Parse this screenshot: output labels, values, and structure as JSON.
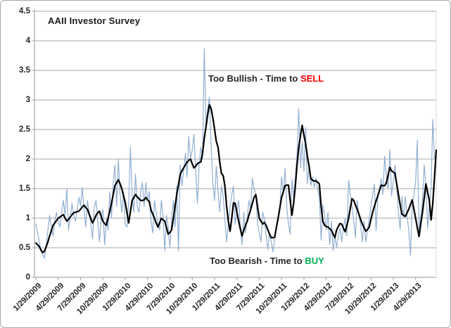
{
  "title": "AAII Investor Survey",
  "annotations": {
    "bullish_prefix": "Too Bullish - Time to ",
    "bullish_action": "SELL",
    "bearish_prefix": "Too Bearish - Time to ",
    "bearish_action": "BUY"
  },
  "colors": {
    "weekly_line": "#92AFD2",
    "smoothed_line": "#000000",
    "gridline": "#A6A6A6",
    "axis_line": "#A6A6A6",
    "plot_right_edge": "#D9D9D9",
    "text": "#262626",
    "sell_red": "#FF0000",
    "buy_green": "#00B050"
  },
  "y_axis": {
    "min": 0,
    "max": 4.5,
    "step": 0.5,
    "tick_labels": [
      "0",
      "0.5",
      "1",
      "1.5",
      "2",
      "2.5",
      "3",
      "3.5",
      "4",
      "4.5"
    ]
  },
  "x_axis": {
    "tick_labels": [
      "1/29/2009",
      "4/29/2009",
      "7/29/2009",
      "10/29/2009",
      "1/29/2010",
      "4/29/2010",
      "7/29/2010",
      "10/29/2010",
      "1/29/2011",
      "4/29/2011",
      "7/29/2011",
      "10/29/2011",
      "1/29/2012",
      "4/29/2012",
      "7/29/2012",
      "10/29/2012",
      "1/29/2013",
      "4/29/2013"
    ],
    "weeks_per_tick": 13
  },
  "chart_data": {
    "type": "line",
    "title": "AAII Investor Survey",
    "x_unit": "weeks since 1/29/2009",
    "x_tick_labels": [
      "1/29/2009",
      "4/29/2009",
      "7/29/2009",
      "10/29/2009",
      "1/29/2010",
      "4/29/2010",
      "7/29/2010",
      "10/29/2010",
      "1/29/2011",
      "4/29/2011",
      "7/29/2011",
      "10/29/2011",
      "1/29/2012",
      "4/29/2012",
      "7/29/2012",
      "10/29/2012",
      "1/29/2013",
      "4/29/2013"
    ],
    "x_tick_week_interval": 13,
    "ylim": [
      0,
      4.5
    ],
    "y_step": 0.5,
    "grid": true,
    "legend_position": "none",
    "annotations": [
      {
        "text": "Too Bullish - Time to SELL",
        "approx_y_value": 3.35
      },
      {
        "text": "Too Bearish - Time to BUY",
        "approx_y_value": 0.28
      }
    ],
    "series": [
      {
        "name": "weekly",
        "color": "#92AFD2",
        "stroke_width": 1.2,
        "values": [
          0.9,
          0.75,
          0.6,
          0.45,
          0.38,
          0.32,
          0.55,
          0.8,
          1.05,
          0.85,
          0.7,
          0.95,
          1.1,
          0.95,
          0.85,
          1.1,
          1.3,
          1.05,
          1.5,
          0.8,
          1.0,
          1.25,
          1.05,
          0.95,
          1.15,
          1.35,
          1.2,
          1.52,
          1.15,
          0.85,
          1.3,
          1.1,
          0.9,
          0.65,
          1.2,
          1.3,
          0.95,
          0.6,
          1.0,
          1.15,
          0.55,
          1.0,
          0.8,
          1.45,
          1.0,
          1.6,
          1.9,
          1.2,
          2.0,
          1.4,
          1.1,
          1.45,
          0.9,
          0.85,
          1.25,
          2.2,
          1.4,
          1.1,
          1.75,
          1.2,
          1.1,
          1.45,
          1.6,
          1.2,
          1.6,
          1.3,
          1.45,
          0.95,
          0.75,
          1.3,
          1.1,
          0.9,
          0.8,
          1.3,
          1.05,
          0.45,
          1.05,
          0.85,
          0.5,
          1.0,
          1.3,
          0.85,
          1.55,
          0.45,
          1.9,
          1.55,
          1.8,
          2.1,
          1.7,
          2.38,
          2.0,
          2.15,
          2.42,
          1.8,
          1.25,
          1.9,
          2.2,
          2.0,
          3.87,
          2.6,
          2.85,
          3.05,
          2.2,
          1.6,
          1.3,
          1.88,
          1.45,
          1.11,
          1.55,
          1.38,
          1.0,
          0.6,
          0.9,
          1.2,
          1.4,
          1.54,
          0.9,
          1.1,
          1.3,
          0.85,
          0.55,
          1.1,
          0.75,
          1.0,
          1.3,
          1.15,
          1.68,
          1.5,
          1.4,
          0.9,
          0.75,
          0.6,
          1.1,
          0.99,
          0.7,
          0.47,
          0.75,
          0.6,
          0.43,
          0.65,
          0.85,
          1.0,
          1.2,
          1.7,
          1.4,
          1.84,
          1.2,
          0.9,
          0.73,
          1.66,
          1.35,
          1.7,
          2.1,
          2.85,
          1.85,
          2.3,
          1.79,
          2.54,
          1.58,
          1.88,
          1.55,
          1.7,
          1.52,
          1.68,
          1.49,
          1.35,
          0.63,
          1.23,
          1.05,
          0.8,
          1.1,
          0.55,
          0.95,
          0.45,
          0.7,
          0.51,
          0.7,
          0.83,
          0.6,
          0.85,
          1.0,
          0.7,
          1.64,
          1.4,
          1.2,
          0.95,
          0.67,
          1.3,
          1.05,
          0.9,
          0.6,
          0.95,
          0.6,
          0.8,
          1.0,
          1.2,
          1.4,
          1.58,
          0.79,
          1.35,
          1.5,
          1.67,
          1.4,
          2.05,
          1.7,
          1.5,
          2.16,
          1.38,
          1.6,
          1.9,
          1.55,
          1.1,
          0.81,
          1.37,
          1.0,
          1.37,
          1.05,
          0.8,
          0.37,
          1.2,
          1.4,
          1.6,
          2.32,
          0.79,
          1.05,
          1.3,
          1.9,
          1.55,
          0.83,
          1.2,
          1.5,
          2.67,
          2.0,
          2.1
        ]
      },
      {
        "name": "smoothed",
        "color": "#000000",
        "stroke_width": 2.2,
        "values": [
          0.58,
          0.55,
          0.52,
          0.46,
          0.42,
          0.44,
          0.52,
          0.6,
          0.7,
          0.79,
          0.88,
          0.92,
          0.96,
          1.0,
          1.02,
          1.04,
          1.06,
          1.0,
          0.95,
          0.98,
          1.02,
          1.06,
          1.09,
          1.1,
          1.11,
          1.12,
          1.15,
          1.19,
          1.22,
          1.18,
          1.15,
          1.07,
          0.99,
          0.92,
          0.98,
          1.05,
          1.09,
          1.12,
          1.03,
          0.95,
          0.91,
          0.88,
          1.0,
          1.12,
          1.25,
          1.4,
          1.55,
          1.6,
          1.65,
          1.58,
          1.5,
          1.38,
          1.27,
          1.1,
          0.92,
          1.11,
          1.3,
          1.35,
          1.4,
          1.36,
          1.33,
          1.3,
          1.3,
          1.31,
          1.35,
          1.31,
          1.28,
          1.14,
          1.07,
          1.0,
          0.92,
          0.85,
          0.92,
          1.0,
          0.97,
          0.95,
          0.84,
          0.73,
          0.76,
          0.8,
          1.0,
          1.2,
          1.4,
          1.57,
          1.74,
          1.8,
          1.85,
          1.9,
          1.95,
          1.98,
          2.0,
          1.92,
          1.85,
          1.88,
          1.92,
          1.94,
          1.95,
          2.1,
          2.35,
          2.55,
          2.75,
          2.92,
          2.85,
          2.7,
          2.5,
          2.3,
          2.2,
          1.95,
          1.76,
          1.72,
          1.55,
          1.2,
          0.95,
          0.78,
          1.0,
          1.26,
          1.25,
          1.1,
          0.95,
          0.82,
          0.7,
          0.8,
          0.88,
          0.95,
          1.05,
          1.15,
          1.25,
          1.35,
          1.4,
          1.2,
          1.0,
          0.95,
          0.9,
          0.93,
          0.88,
          0.8,
          0.73,
          0.67,
          0.67,
          0.68,
          0.85,
          1.0,
          1.18,
          1.35,
          1.45,
          1.55,
          1.56,
          1.56,
          1.3,
          1.05,
          1.25,
          1.55,
          1.9,
          2.2,
          2.4,
          2.57,
          2.4,
          2.26,
          2.05,
          1.88,
          1.67,
          1.64,
          1.63,
          1.63,
          1.61,
          1.58,
          1.2,
          0.95,
          0.88,
          0.86,
          0.85,
          0.82,
          0.8,
          0.73,
          0.67,
          0.8,
          0.86,
          0.91,
          0.9,
          0.83,
          0.77,
          0.88,
          1.0,
          1.17,
          1.33,
          1.3,
          1.22,
          1.15,
          1.07,
          0.98,
          0.9,
          0.84,
          0.78,
          0.81,
          0.85,
          0.98,
          1.1,
          1.2,
          1.29,
          1.38,
          1.47,
          1.56,
          1.55,
          1.55,
          1.6,
          1.73,
          1.86,
          1.8,
          1.78,
          1.76,
          1.58,
          1.4,
          1.23,
          1.07,
          1.05,
          1.03,
          1.09,
          1.15,
          1.23,
          1.31,
          1.15,
          1.0,
          0.84,
          0.69,
          0.9,
          1.1,
          1.34,
          1.58,
          1.44,
          1.3,
          0.97,
          1.25,
          1.7,
          2.15
        ]
      }
    ]
  }
}
